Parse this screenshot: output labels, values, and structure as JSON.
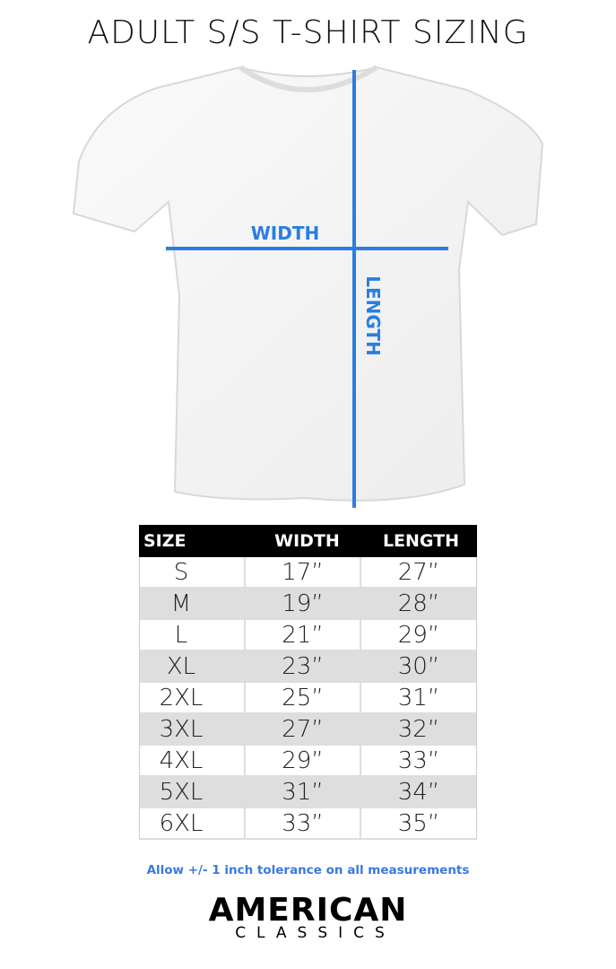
{
  "title": "ADULT S/S T-SHIRT SIZING",
  "diagram": {
    "width_label": "WIDTH",
    "length_label": "LENGTH",
    "line_color": "#2a7de1"
  },
  "table": {
    "headers": [
      "SIZE",
      "WIDTH",
      "LENGTH"
    ],
    "rows": [
      [
        "S",
        "17”",
        "27”"
      ],
      [
        "M",
        "19”",
        "28”"
      ],
      [
        "L",
        "21”",
        "29”"
      ],
      [
        "XL",
        "23”",
        "30”"
      ],
      [
        "2XL",
        "25”",
        "31”"
      ],
      [
        "3XL",
        "27”",
        "32”"
      ],
      [
        "4XL",
        "29”",
        "33”"
      ],
      [
        "5XL",
        "31”",
        "34”"
      ],
      [
        "6XL",
        "33”",
        "35”"
      ]
    ]
  },
  "note": "Allow +/- 1 inch tolerance on all measurements",
  "logo": {
    "line1": "AMERICAN",
    "line2": "CLASSICS"
  }
}
